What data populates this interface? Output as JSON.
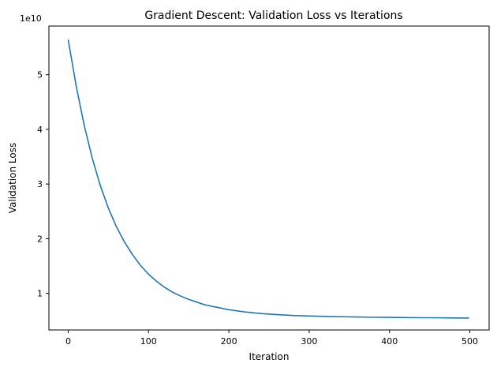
{
  "chart_data": {
    "type": "line",
    "title": "Gradient Descent: Validation Loss vs Iterations",
    "xlabel": "Iteration",
    "ylabel": "Validation Loss",
    "y_offset_label": "1e10",
    "xlim": [
      -24,
      524
    ],
    "ylim": [
      0.33,
      5.89
    ],
    "x_ticks": [
      0,
      100,
      200,
      300,
      400,
      500
    ],
    "x_tick_labels": [
      "0",
      "100",
      "200",
      "300",
      "400",
      "500"
    ],
    "y_ticks": [
      1,
      2,
      3,
      4,
      5
    ],
    "y_tick_labels": [
      "1",
      "2",
      "3",
      "4",
      "5"
    ],
    "grid": false,
    "legend": "none",
    "series": [
      {
        "color": "#1f77b4",
        "x": [
          0,
          10,
          20,
          30,
          40,
          50,
          60,
          70,
          80,
          90,
          100,
          110,
          120,
          130,
          140,
          150,
          160,
          170,
          180,
          190,
          200,
          220,
          240,
          260,
          280,
          300,
          320,
          340,
          360,
          380,
          400,
          420,
          440,
          460,
          480,
          499
        ],
        "y": [
          5.64,
          4.79,
          4.07,
          3.47,
          2.97,
          2.56,
          2.22,
          1.94,
          1.71,
          1.51,
          1.35,
          1.22,
          1.11,
          1.02,
          0.95,
          0.89,
          0.84,
          0.79,
          0.76,
          0.73,
          0.7,
          0.66,
          0.63,
          0.61,
          0.595,
          0.585,
          0.578,
          0.572,
          0.567,
          0.563,
          0.56,
          0.557,
          0.554,
          0.552,
          0.55,
          0.548
        ]
      }
    ]
  }
}
